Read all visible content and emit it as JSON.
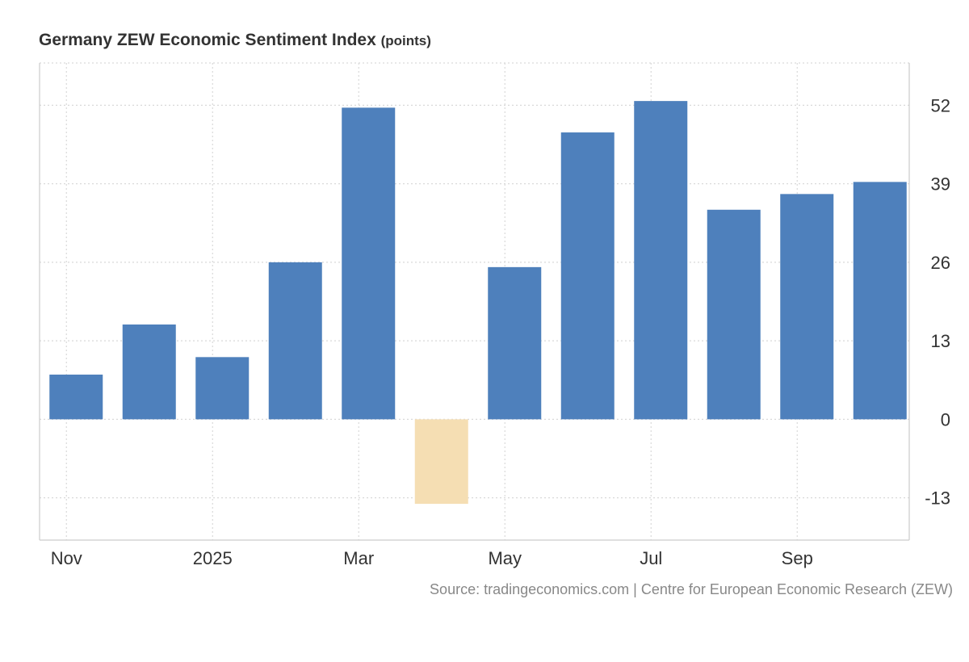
{
  "header": {
    "title": "Germany ZEW Economic Sentiment Index",
    "unit": "(points)"
  },
  "footer": {
    "source": "Source: tradingeconomics.com | Centre for European Economic Research (ZEW)"
  },
  "colors": {
    "positive": "#4e80bc",
    "negative": "#f5deb3",
    "grid": "#d9d9d9",
    "axis": "#cccccc"
  },
  "chart_data": {
    "type": "bar",
    "title": "Germany ZEW Economic Sentiment Index (points)",
    "xlabel": "",
    "ylabel": "points",
    "categories": [
      "Nov 2024",
      "Dec 2024",
      "Jan 2025",
      "Feb 2025",
      "Mar 2025",
      "Apr 2025",
      "May 2025",
      "Jun 2025",
      "Jul 2025",
      "Aug 2025",
      "Sep 2025",
      "Oct 2025"
    ],
    "values": [
      7.4,
      15.7,
      10.3,
      26.0,
      51.6,
      -14.0,
      25.2,
      47.5,
      52.7,
      34.7,
      37.3,
      39.3
    ],
    "x_tick_labels": [
      {
        "label": "Nov",
        "index": 0
      },
      {
        "label": "2025",
        "index": 2
      },
      {
        "label": "Mar",
        "index": 4
      },
      {
        "label": "May",
        "index": 6
      },
      {
        "label": "Jul",
        "index": 8
      },
      {
        "label": "Sep",
        "index": 10
      }
    ],
    "y_ticks": [
      -13,
      0,
      13,
      26,
      39,
      52
    ],
    "ylim": [
      -20,
      59
    ],
    "y_axis_side": "right",
    "grid": true,
    "legend": "none"
  }
}
